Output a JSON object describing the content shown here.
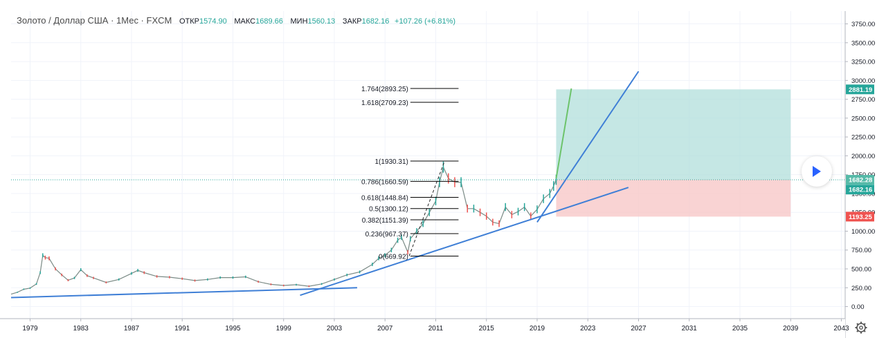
{
  "header": {
    "symbol": "Золото / Доллар США · 1Мес · FXCM",
    "open_label": "ОТКР",
    "open": "1574.90",
    "high_label": "МАКС",
    "high": "1689.66",
    "low_label": "МИН",
    "low": "1560.13",
    "close_label": "ЗАКР",
    "close": "1682.16",
    "change": "+107.26 (+6.81%)"
  },
  "colors": {
    "up": "#26a69a",
    "down": "#ef5350",
    "trend": "#3f7fd6",
    "profit_zone": "#b2dfdb",
    "loss_zone": "#f8c8c8",
    "target_badge": "#26a69a",
    "stop_badge": "#ef5350",
    "fib_line": "#000000"
  },
  "chart_data": {
    "type": "line",
    "title": "Золото / Доллар США · 1Мес · FXCM",
    "xlabel": "",
    "ylabel": "",
    "x_range": [
      1977.5,
      2043.3
    ],
    "ylim": [
      -160,
      3920
    ],
    "x_ticks": [
      "1979",
      "1983",
      "1987",
      "1991",
      "1995",
      "1999",
      "2003",
      "2007",
      "2011",
      "2015",
      "2019",
      "2023",
      "2027",
      "2031",
      "2035",
      "2039",
      "2043"
    ],
    "y_ticks": [
      "3750.00",
      "3500.00",
      "3250.00",
      "3000.00",
      "2750.00",
      "2500.00",
      "2250.00",
      "2000.00",
      "1750.00",
      "1500.00",
      "1250.00",
      "1000.00",
      "750.00",
      "500.00",
      "250.00",
      "0.00"
    ],
    "grid": true,
    "series": [
      {
        "x": [
          1977.5,
          1978.0,
          1978.5,
          1979.0,
          1979.5,
          1979.8,
          1980.0,
          1980.2,
          1980.5,
          1981.0,
          1981.5,
          1982.0,
          1982.5,
          1983.0,
          1983.5,
          1984.0,
          1985.0,
          1986.0,
          1987.0,
          1987.5,
          1988.0,
          1989.0,
          1990.0,
          1991.0,
          1992.0,
          1993.0,
          1994.0,
          1995.0,
          1996.0,
          1997.0,
          1998.0,
          1999.0,
          2000.0,
          2001.0,
          2002.0,
          2003.0,
          2004.0,
          2005.0,
          2006.0,
          2006.5,
          2007.0,
          2007.5,
          2008.0,
          2008.3,
          2008.8,
          2009.0,
          2009.5,
          2010.0,
          2010.5,
          2011.0,
          2011.3,
          2011.6,
          2012.0,
          2012.5,
          2013.0,
          2013.5,
          2014.0,
          2014.5,
          2015.0,
          2015.5,
          2016.0,
          2016.5,
          2017.0,
          2017.5,
          2018.0,
          2018.5,
          2019.0,
          2019.5,
          2020.0,
          2020.3,
          2020.5
        ],
        "y": [
          165,
          190,
          230,
          245,
          300,
          450,
          680,
          650,
          640,
          500,
          420,
          350,
          380,
          490,
          410,
          380,
          320,
          360,
          440,
          480,
          450,
          400,
          390,
          370,
          345,
          360,
          385,
          385,
          395,
          330,
          295,
          280,
          290,
          270,
          300,
          360,
          420,
          460,
          560,
          640,
          680,
          750,
          880,
          920,
          720,
          900,
          1000,
          1100,
          1250,
          1400,
          1650,
          1850,
          1700,
          1650,
          1650,
          1300,
          1300,
          1250,
          1200,
          1120,
          1100,
          1320,
          1220,
          1260,
          1320,
          1200,
          1290,
          1430,
          1500,
          1600,
          1682
        ]
      }
    ],
    "trendlines": [
      {
        "x1": 1977.5,
        "y1": 120,
        "x2": 2004.8,
        "y2": 250
      },
      {
        "x1": 2000.3,
        "y1": 150,
        "x2": 2026.2,
        "y2": 1580
      },
      {
        "x1": 2019.0,
        "y1": 1120,
        "x2": 2027.0,
        "y2": 3120
      }
    ],
    "fib_levels": [
      {
        "label": "1.764(2893.25)",
        "value": 2893.25
      },
      {
        "label": "1.618(2709.23)",
        "value": 2709.23
      },
      {
        "label": "1(1930.31)",
        "value": 1930.31
      },
      {
        "label": "0.786(1660.59)",
        "value": 1660.59
      },
      {
        "label": "0.618(1448.84)",
        "value": 1448.84
      },
      {
        "label": "0.5(1300.12)",
        "value": 1300.12
      },
      {
        "label": "0.382(1151.39)",
        "value": 1151.39
      },
      {
        "label": "0.236(967.37)",
        "value": 967.37
      },
      {
        "label": "0(669.92)",
        "value": 669.92
      }
    ],
    "position": {
      "entry": 1682.28,
      "target": 2881.19,
      "stop": 1193.25,
      "x_start": 2020.5,
      "x_end": 2039.0
    },
    "projection": [
      {
        "x": 2020.5,
        "y": 1700
      },
      {
        "x": 2021.7,
        "y": 2893
      }
    ],
    "price_labels": {
      "target": "2881.19",
      "current": "1682.28",
      "close": "1682.16",
      "stop": "1193.25"
    }
  }
}
